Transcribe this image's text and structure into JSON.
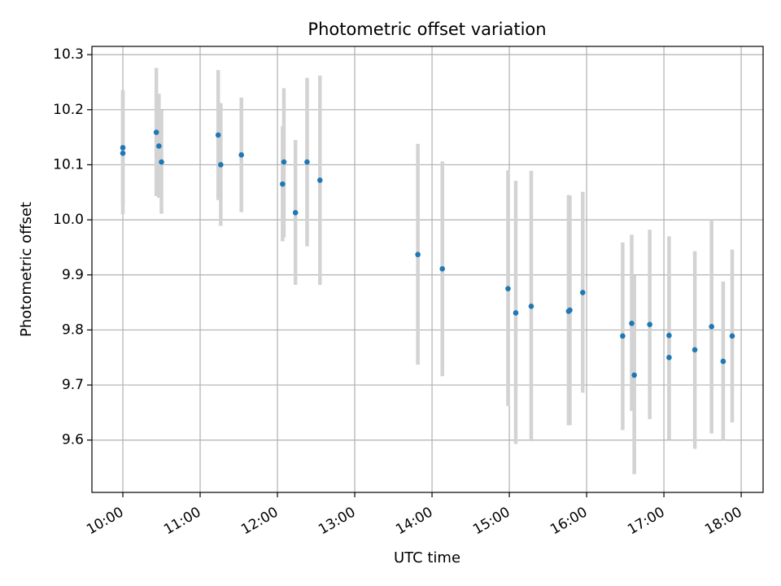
{
  "chart_data": {
    "type": "scatter",
    "title": "Photometric offset variation",
    "xlabel": "UTC time",
    "ylabel": "Photometric offset",
    "xlim": [
      "09:36",
      "18:17"
    ],
    "ylim": [
      9.505,
      10.315
    ],
    "x_ticks": [
      "10:00",
      "11:00",
      "12:00",
      "13:00",
      "14:00",
      "15:00",
      "16:00",
      "17:00",
      "18:00"
    ],
    "y_ticks": [
      9.6,
      9.7,
      9.8,
      9.9,
      10.0,
      10.1,
      10.2,
      10.3
    ],
    "y_tick_labels": [
      "9.6",
      "9.7",
      "9.8",
      "9.9",
      "10.0",
      "10.1",
      "10.2",
      "10.3"
    ],
    "grid": true,
    "error_bars": true,
    "colors": {
      "points": "#1f77b4",
      "error_bars": "#d3d3d3",
      "grid": "#b0b0b0",
      "axes": "#000000"
    },
    "points": [
      {
        "x": "10:00",
        "y": 10.121,
        "lo": 10.01,
        "hi": 10.232
      },
      {
        "x": "10:00",
        "y": 10.131,
        "lo": 10.028,
        "hi": 10.236
      },
      {
        "x": "10:26",
        "y": 10.159,
        "lo": 10.043,
        "hi": 10.276
      },
      {
        "x": "10:28",
        "y": 10.134,
        "lo": 10.04,
        "hi": 10.229
      },
      {
        "x": "10:30",
        "y": 10.105,
        "lo": 10.011,
        "hi": 10.199
      },
      {
        "x": "11:14",
        "y": 10.154,
        "lo": 10.036,
        "hi": 10.272
      },
      {
        "x": "11:16",
        "y": 10.1,
        "lo": 9.989,
        "hi": 10.212
      },
      {
        "x": "11:32",
        "y": 10.118,
        "lo": 10.014,
        "hi": 10.222
      },
      {
        "x": "12:04",
        "y": 10.065,
        "lo": 9.961,
        "hi": 10.17
      },
      {
        "x": "12:05",
        "y": 10.105,
        "lo": 9.968,
        "hi": 10.239
      },
      {
        "x": "12:14",
        "y": 10.013,
        "lo": 9.882,
        "hi": 10.145
      },
      {
        "x": "12:23",
        "y": 10.105,
        "lo": 9.952,
        "hi": 10.258
      },
      {
        "x": "12:33",
        "y": 10.072,
        "lo": 9.882,
        "hi": 10.262
      },
      {
        "x": "13:49",
        "y": 9.937,
        "lo": 9.737,
        "hi": 10.138
      },
      {
        "x": "14:08",
        "y": 9.911,
        "lo": 9.716,
        "hi": 10.106
      },
      {
        "x": "14:59",
        "y": 9.875,
        "lo": 9.662,
        "hi": 10.09
      },
      {
        "x": "15:05",
        "y": 9.831,
        "lo": 9.593,
        "hi": 10.071
      },
      {
        "x": "15:17",
        "y": 9.843,
        "lo": 9.598,
        "hi": 10.089
      },
      {
        "x": "15:46",
        "y": 9.834,
        "lo": 9.627,
        "hi": 10.045
      },
      {
        "x": "15:47",
        "y": 9.836,
        "lo": 9.627,
        "hi": 10.044
      },
      {
        "x": "15:57",
        "y": 9.868,
        "lo": 9.686,
        "hi": 10.051
      },
      {
        "x": "16:28",
        "y": 9.789,
        "lo": 9.618,
        "hi": 9.959
      },
      {
        "x": "16:35",
        "y": 9.812,
        "lo": 9.653,
        "hi": 9.973
      },
      {
        "x": "16:37",
        "y": 9.718,
        "lo": 9.538,
        "hi": 9.899
      },
      {
        "x": "16:49",
        "y": 9.81,
        "lo": 9.638,
        "hi": 9.982
      },
      {
        "x": "17:04",
        "y": 9.79,
        "lo": 9.601,
        "hi": 9.97
      },
      {
        "x": "17:04",
        "y": 9.75,
        "lo": 9.601,
        "hi": 9.901
      },
      {
        "x": "17:24",
        "y": 9.764,
        "lo": 9.584,
        "hi": 9.943
      },
      {
        "x": "17:37",
        "y": 9.806,
        "lo": 9.612,
        "hi": 10.0
      },
      {
        "x": "17:46",
        "y": 9.743,
        "lo": 9.6,
        "hi": 9.888
      },
      {
        "x": "17:53",
        "y": 9.789,
        "lo": 9.632,
        "hi": 9.946
      }
    ]
  }
}
